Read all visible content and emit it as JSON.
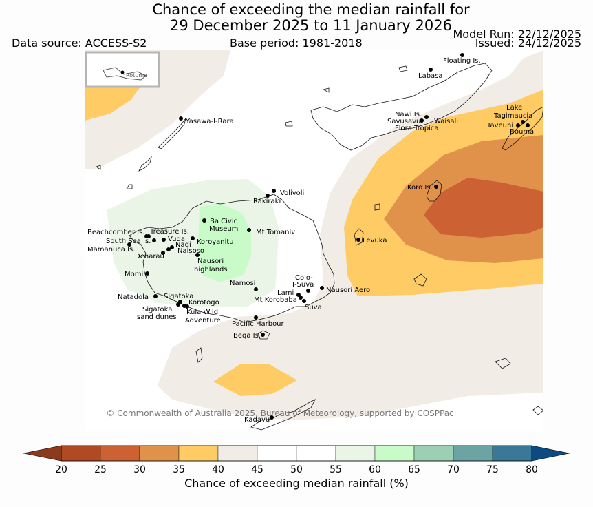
{
  "title": {
    "line1": "Chance of exceeding the median rainfall for",
    "line2": "29 December 2025 to 11 January 2026"
  },
  "header": {
    "data_source": "Data source: ACCESS-S2",
    "base_period": "Base period: 1981-2018",
    "model_run": "Model Run: 22/12/2025",
    "issued": "Issued: 24/12/2025"
  },
  "inset": {
    "label": "Rotuma"
  },
  "locations": {
    "floating": "Floating Is.",
    "labasa": "Labasa",
    "nawi": "Nawi Is.",
    "savusavu": "Savusavu",
    "waisali": "Waisali",
    "flora": "Flora Tropica",
    "lake": "Lake",
    "tagimaucia": "Tagimaucia",
    "taveuni": "Taveuni",
    "bouma": "Bouma",
    "yasawa": "Yasawa-I-Rara",
    "volivoli": "Volivoli",
    "rakiraki": "Rakiraki",
    "koro": "Koro Is.",
    "beachcomber": "Beachcomber Is.",
    "treasure": "Treasure Is.",
    "south_sea": "South Sea Is.",
    "vuda": "Vuda",
    "mamanuca": "Mamanuca Is.",
    "nadi": "Nadi",
    "ba_civic_1": "Ba Civic",
    "ba_civic_2": "Museum",
    "mt_tomanivi": "Mt Tomanivi",
    "koroyanitu": "Koroyanitu",
    "naisoso": "Naisoso",
    "denarau": "Denarau",
    "levuka": "Levuka",
    "nausori_h1": "Nausori",
    "nausori_h2": "highlands",
    "momi": "Momi",
    "namosi": "Namosi",
    "colo_1": "Colo-",
    "colo_2": "I-Suva",
    "nausori_aero": "Nausori Aero",
    "lami": "Lami",
    "mt_korobaba": "Mt Korobaba",
    "suva": "Suva",
    "natadola": "Natadola",
    "sigatoka": "Sigatoka",
    "korotogo": "Korotogo",
    "sig_dunes_1": "Sigatoka",
    "sig_dunes_2": "sand dunes",
    "kula_1": "Kula Wild",
    "kula_2": "Adventure",
    "pacific_harbour": "Pacific Harbour",
    "beqa": "Beqa Is.",
    "kadavu": "Kadavu"
  },
  "copyright": "© Commonwealth of Australia 2025, Bureau of Meteorology, supported by COSPPac",
  "legend": {
    "label": "Chance of exceeding median rainfall (%)",
    "ticks": [
      "20",
      "25",
      "30",
      "35",
      "40",
      "45",
      "50",
      "55",
      "60",
      "65",
      "70",
      "75",
      "80"
    ],
    "low_color": "#8b3a1c",
    "high_color": "#0c4b82",
    "colors": [
      "#b04a24",
      "#cc6233",
      "#e0924a",
      "#fecb65",
      "#f1ede6",
      "#ffffff",
      "#ffffff",
      "#eaf5e8",
      "#c8fbc8",
      "#9ccfb3",
      "#6ca4a3",
      "#3b7898"
    ]
  },
  "regions": {
    "lt20": "#b04a24",
    "c25": "#cc6233",
    "c30": "#e0924a",
    "c35": "#fecb65",
    "c40": "#f1ede6",
    "c55": "#eaf5e8",
    "c60": "#c8fbc8"
  }
}
